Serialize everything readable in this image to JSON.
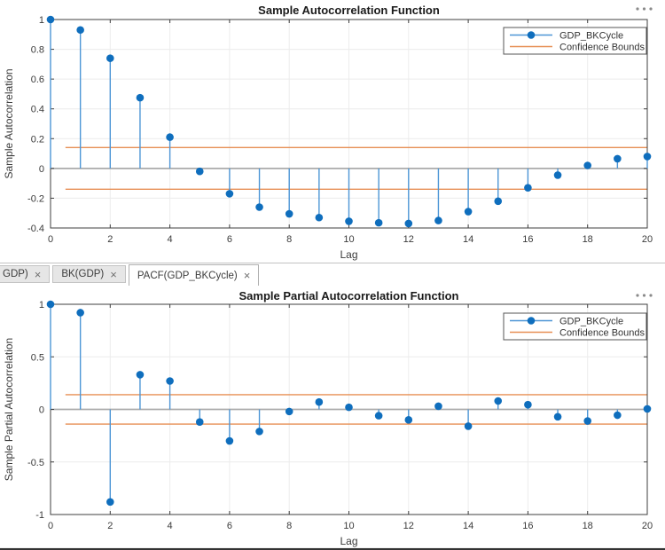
{
  "tabs": {
    "items": [
      {
        "label": "GDP)",
        "close_label": "×",
        "active": false,
        "clipped": true
      },
      {
        "label": "BK(GDP)",
        "close_label": "×",
        "active": false,
        "clipped": false
      },
      {
        "label": "PACF(GDP_BKCycle)",
        "close_label": "×",
        "active": true,
        "clipped": false
      }
    ]
  },
  "colors": {
    "stem": "#4d96d6",
    "marker": "#0f6ebd",
    "confidence": "#e78f55",
    "zero_line": "#ababab",
    "grid": "#ececec",
    "axis": "#3f3f3f",
    "text": "#3a3a3a",
    "title": "#1a1a1a",
    "legend_border": "#555555",
    "menu_dots": "#8a8a8a"
  },
  "chart_data": [
    {
      "type": "stem",
      "title": "Sample Autocorrelation Function",
      "xlabel": "Lag",
      "ylabel": "Sample Autocorrelation",
      "x": [
        0,
        1,
        2,
        3,
        4,
        5,
        6,
        7,
        8,
        9,
        10,
        11,
        12,
        13,
        14,
        15,
        16,
        17,
        18,
        19,
        20
      ],
      "values": [
        1.0,
        0.93,
        0.74,
        0.475,
        0.21,
        -0.02,
        -0.17,
        -0.26,
        -0.305,
        -0.33,
        -0.355,
        -0.365,
        -0.37,
        -0.35,
        -0.29,
        -0.22,
        -0.13,
        -0.045,
        0.02,
        0.065,
        0.08
      ],
      "confidence_bounds": {
        "upper": 0.14,
        "lower": -0.14,
        "x_start": 0.5,
        "x_end": 20
      },
      "xlim": [
        0,
        20
      ],
      "ylim": [
        -0.4,
        1
      ],
      "xticks": [
        0,
        2,
        4,
        6,
        8,
        10,
        12,
        14,
        16,
        18,
        20
      ],
      "yticks": [
        -0.4,
        -0.2,
        0,
        0.2,
        0.4,
        0.6,
        0.8,
        1
      ],
      "grid": true,
      "legend": {
        "position": "top-right",
        "entries": [
          {
            "label": "GDP_BKCycle",
            "line_color": "#4d96d6",
            "marker_color": "#0f6ebd",
            "marker": true
          },
          {
            "label": "Confidence Bounds",
            "line_color": "#e78f55",
            "marker": false
          }
        ]
      },
      "menu_icon": "ellipsis"
    },
    {
      "type": "stem",
      "title": "Sample Partial Autocorrelation Function",
      "xlabel": "Lag",
      "ylabel": "Sample Partial Autocorrelation",
      "x": [
        0,
        1,
        2,
        3,
        4,
        5,
        6,
        7,
        8,
        9,
        10,
        11,
        12,
        13,
        14,
        15,
        16,
        17,
        18,
        19,
        20
      ],
      "values": [
        1.0,
        0.92,
        -0.88,
        0.33,
        0.27,
        -0.12,
        -0.3,
        -0.21,
        -0.02,
        0.07,
        0.02,
        -0.06,
        -0.1,
        0.03,
        -0.16,
        0.08,
        0.045,
        -0.07,
        -0.11,
        -0.055,
        0.005
      ],
      "confidence_bounds": {
        "upper": 0.14,
        "lower": -0.14,
        "x_start": 0.5,
        "x_end": 20
      },
      "xlim": [
        0,
        20
      ],
      "ylim": [
        -1,
        1
      ],
      "xticks": [
        0,
        2,
        4,
        6,
        8,
        10,
        12,
        14,
        16,
        18,
        20
      ],
      "yticks": [
        -1,
        -0.5,
        0,
        0.5,
        1
      ],
      "grid": true,
      "legend": {
        "position": "top-right",
        "entries": [
          {
            "label": "GDP_BKCycle",
            "line_color": "#4d96d6",
            "marker_color": "#0f6ebd",
            "marker": true
          },
          {
            "label": "Confidence Bounds",
            "line_color": "#e78f55",
            "marker": false
          }
        ]
      },
      "menu_icon": "ellipsis"
    }
  ]
}
